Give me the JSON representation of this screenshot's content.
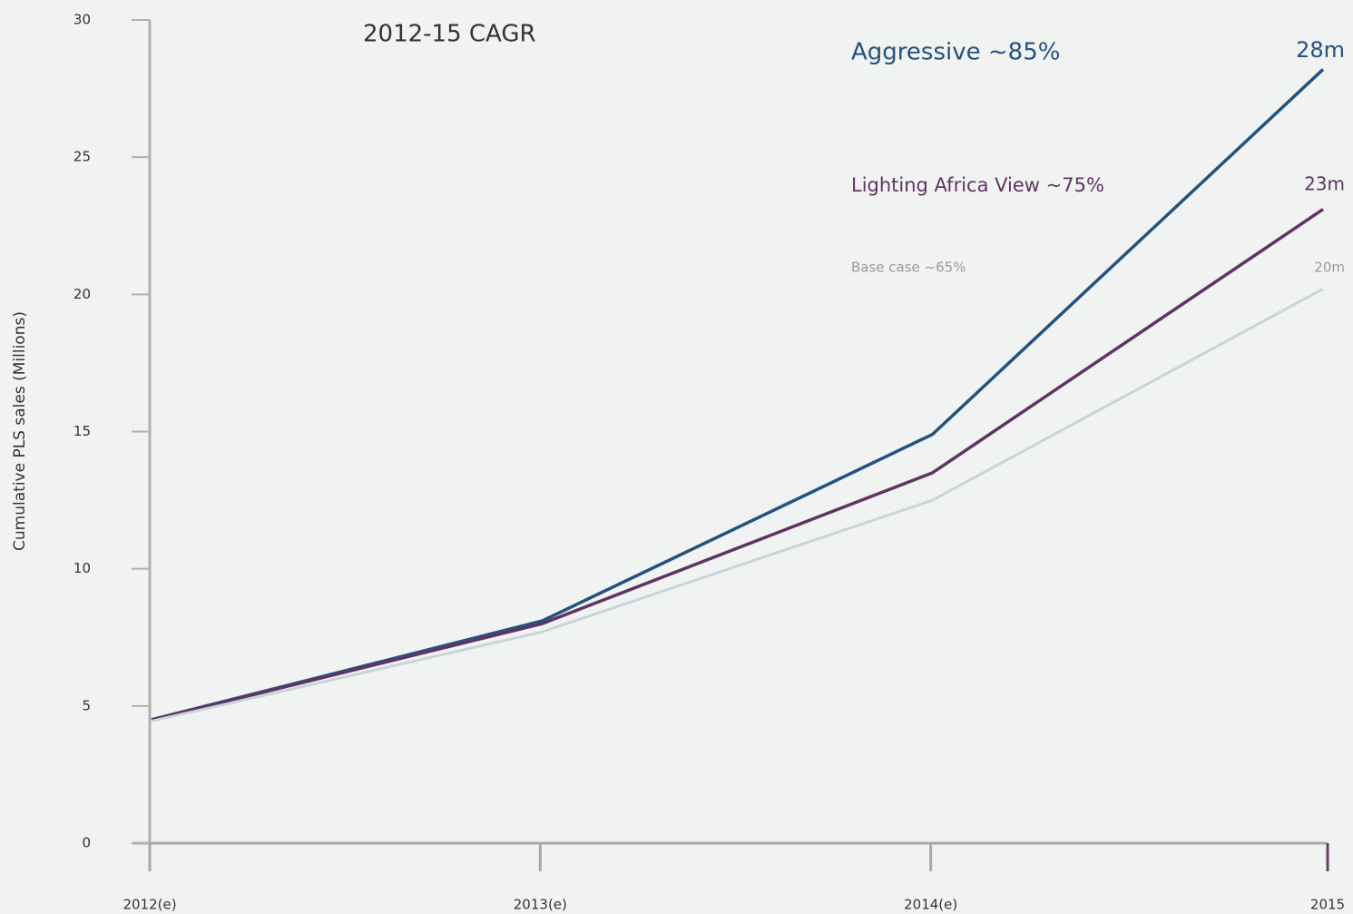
{
  "chart_data": {
    "type": "line",
    "title": "2012-15 CAGR",
    "y_label": "Cumulative PLS sales (Millions)",
    "categories": [
      "2012(e)",
      "2013(e)",
      "2014(e)",
      "2015"
    ],
    "series": [
      {
        "name": "Aggressive ~85%",
        "color": "#23527f",
        "values": [
          4.5,
          8.1,
          14.9,
          28.2
        ],
        "value_labels": [
          null,
          null,
          null,
          "28m"
        ]
      },
      {
        "name": "Lighting Africa View ~75%",
        "color": "#5f3462",
        "values": [
          4.5,
          8.0,
          13.5,
          23.1
        ],
        "value_labels": [
          null,
          null,
          null,
          "23m"
        ]
      },
      {
        "name": "Base case  ~65%",
        "color": "#c9d4dc",
        "values": [
          4.45,
          7.7,
          12.5,
          20.2
        ],
        "value_labels": [
          null,
          null,
          null,
          "20m"
        ]
      }
    ],
    "ylim": [
      0,
      30
    ],
    "yticks": [
      0,
      5,
      10,
      15,
      20,
      25,
      30
    ],
    "grid": false
  }
}
